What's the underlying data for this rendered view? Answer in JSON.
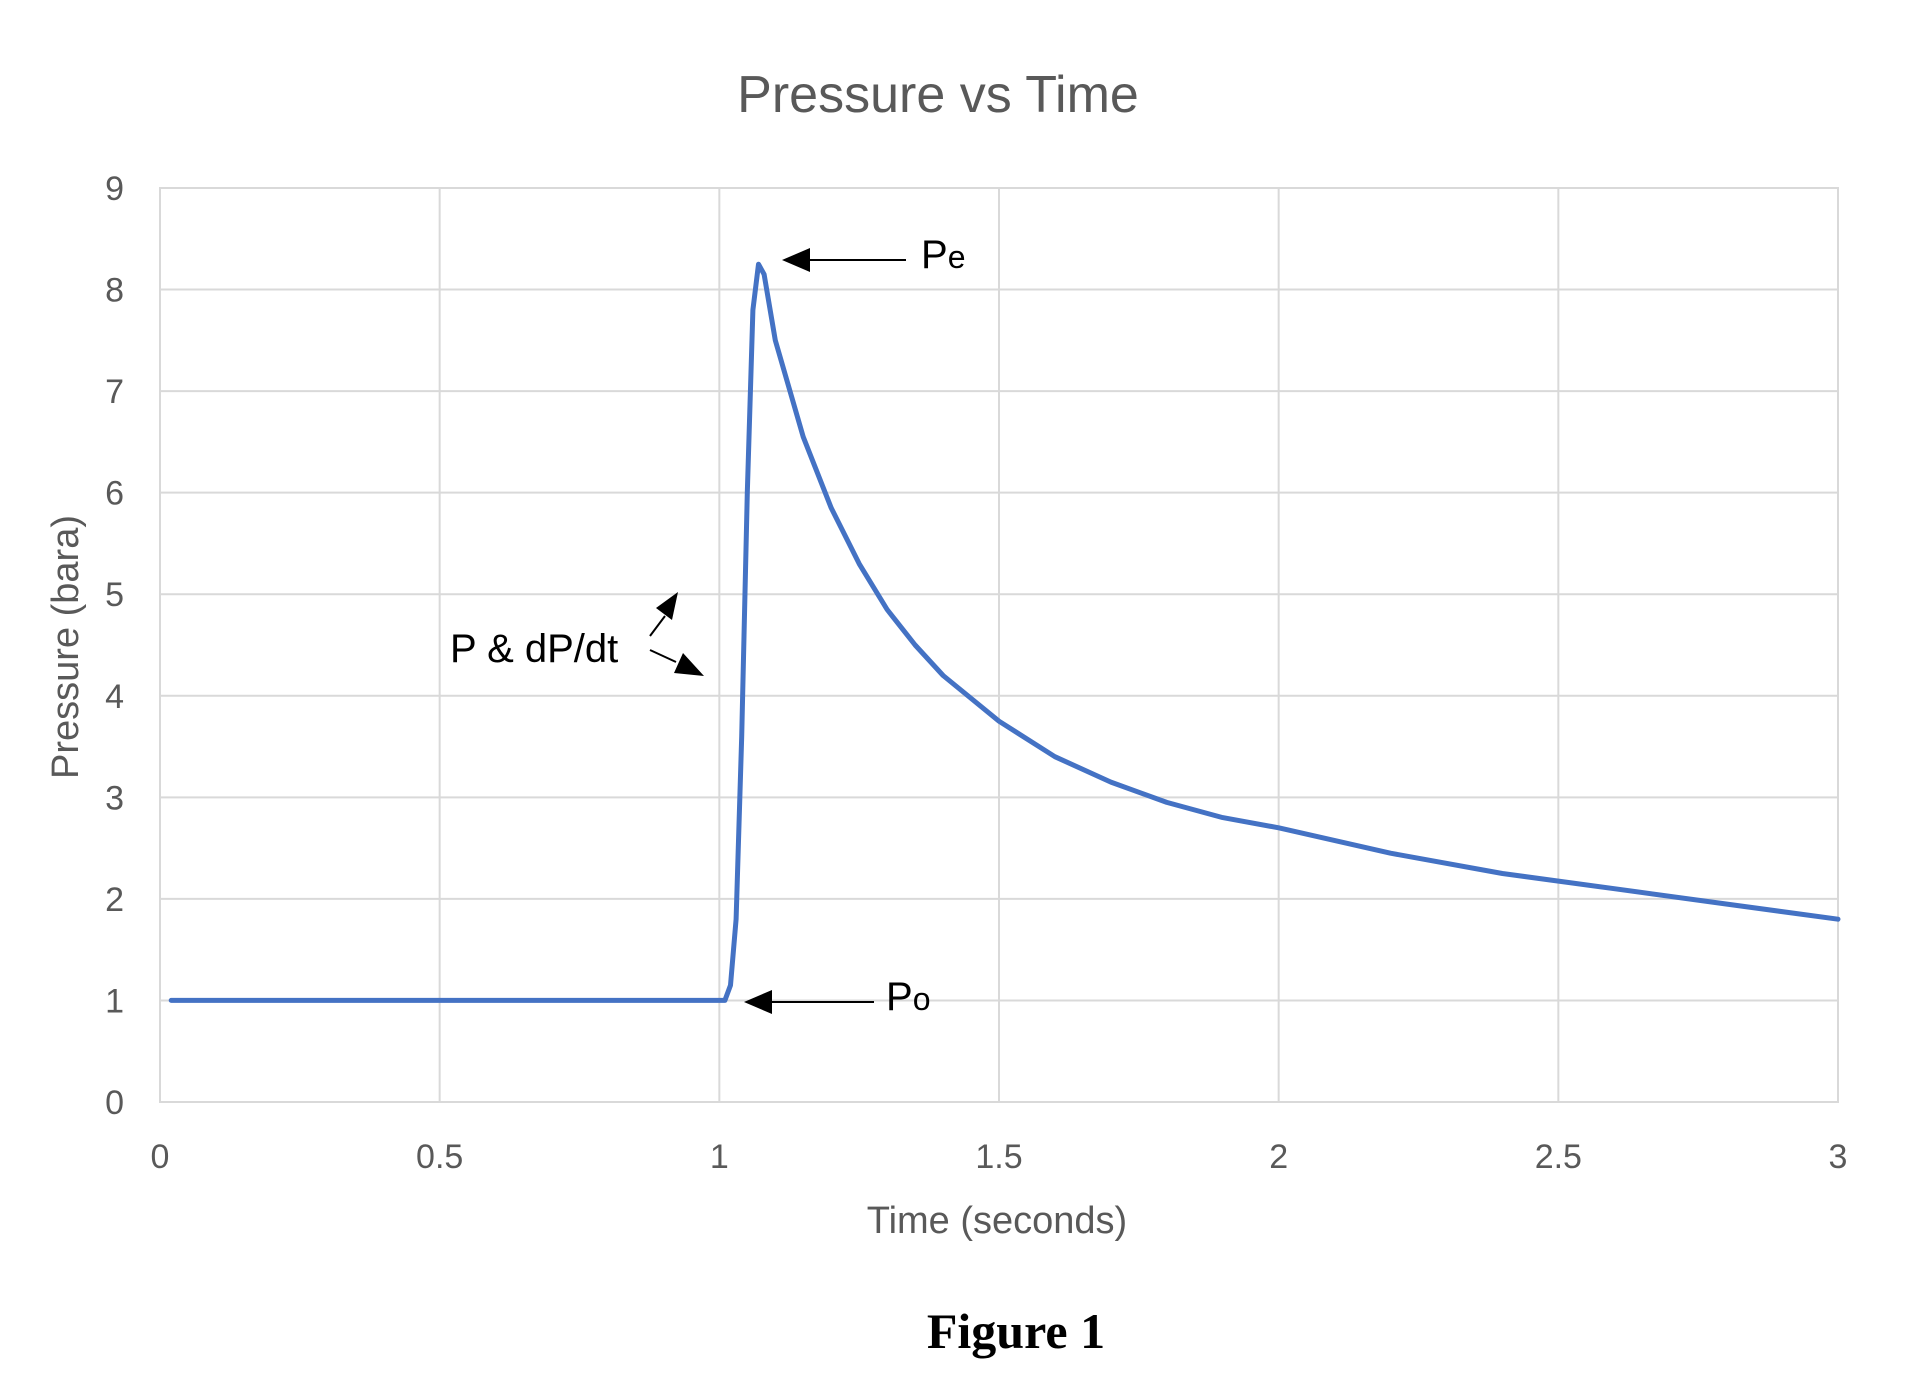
{
  "chart_data": {
    "type": "line",
    "title": "Pressure vs Time",
    "xlabel": "Time (seconds)",
    "ylabel": "Pressure (bara)",
    "xlim": [
      0,
      3
    ],
    "ylim": [
      0,
      9
    ],
    "xticks": [
      0,
      0.5,
      1,
      1.5,
      2,
      2.5,
      3
    ],
    "xtick_labels": [
      "0",
      "0.5",
      "1",
      "1.5",
      "2",
      "2.5",
      "3"
    ],
    "yticks": [
      0,
      1,
      2,
      3,
      4,
      5,
      6,
      7,
      8,
      9
    ],
    "ytick_labels": [
      "0",
      "1",
      "2",
      "3",
      "4",
      "5",
      "6",
      "7",
      "8",
      "9"
    ],
    "grid": true,
    "line_color": "#4472c4",
    "series": [
      {
        "x": [
          0.02,
          0.2,
          0.4,
          0.6,
          0.8,
          1.0,
          1.01,
          1.02,
          1.03,
          1.04,
          1.05,
          1.06,
          1.07,
          1.08,
          1.1,
          1.15,
          1.2,
          1.25,
          1.3,
          1.35,
          1.4,
          1.5,
          1.6,
          1.7,
          1.8,
          1.9,
          2.0,
          2.2,
          2.4,
          2.6,
          2.8,
          3.0
        ],
        "y": [
          1.0,
          1.0,
          1.0,
          1.0,
          1.0,
          1.0,
          1.0,
          1.15,
          1.8,
          3.6,
          6.0,
          7.8,
          8.25,
          8.15,
          7.5,
          6.55,
          5.85,
          5.3,
          4.85,
          4.5,
          4.2,
          3.75,
          3.4,
          3.15,
          2.95,
          2.8,
          2.7,
          2.45,
          2.25,
          2.1,
          1.95,
          1.8
        ]
      }
    ],
    "annotations": [
      {
        "main": "P",
        "sub": "e",
        "x": 1.07,
        "y": 8.25
      },
      {
        "main": "P",
        "sub": "o",
        "x": 1.03,
        "y": 1.0
      },
      {
        "text": "P & dP/dt"
      }
    ]
  },
  "caption": "Figure 1"
}
